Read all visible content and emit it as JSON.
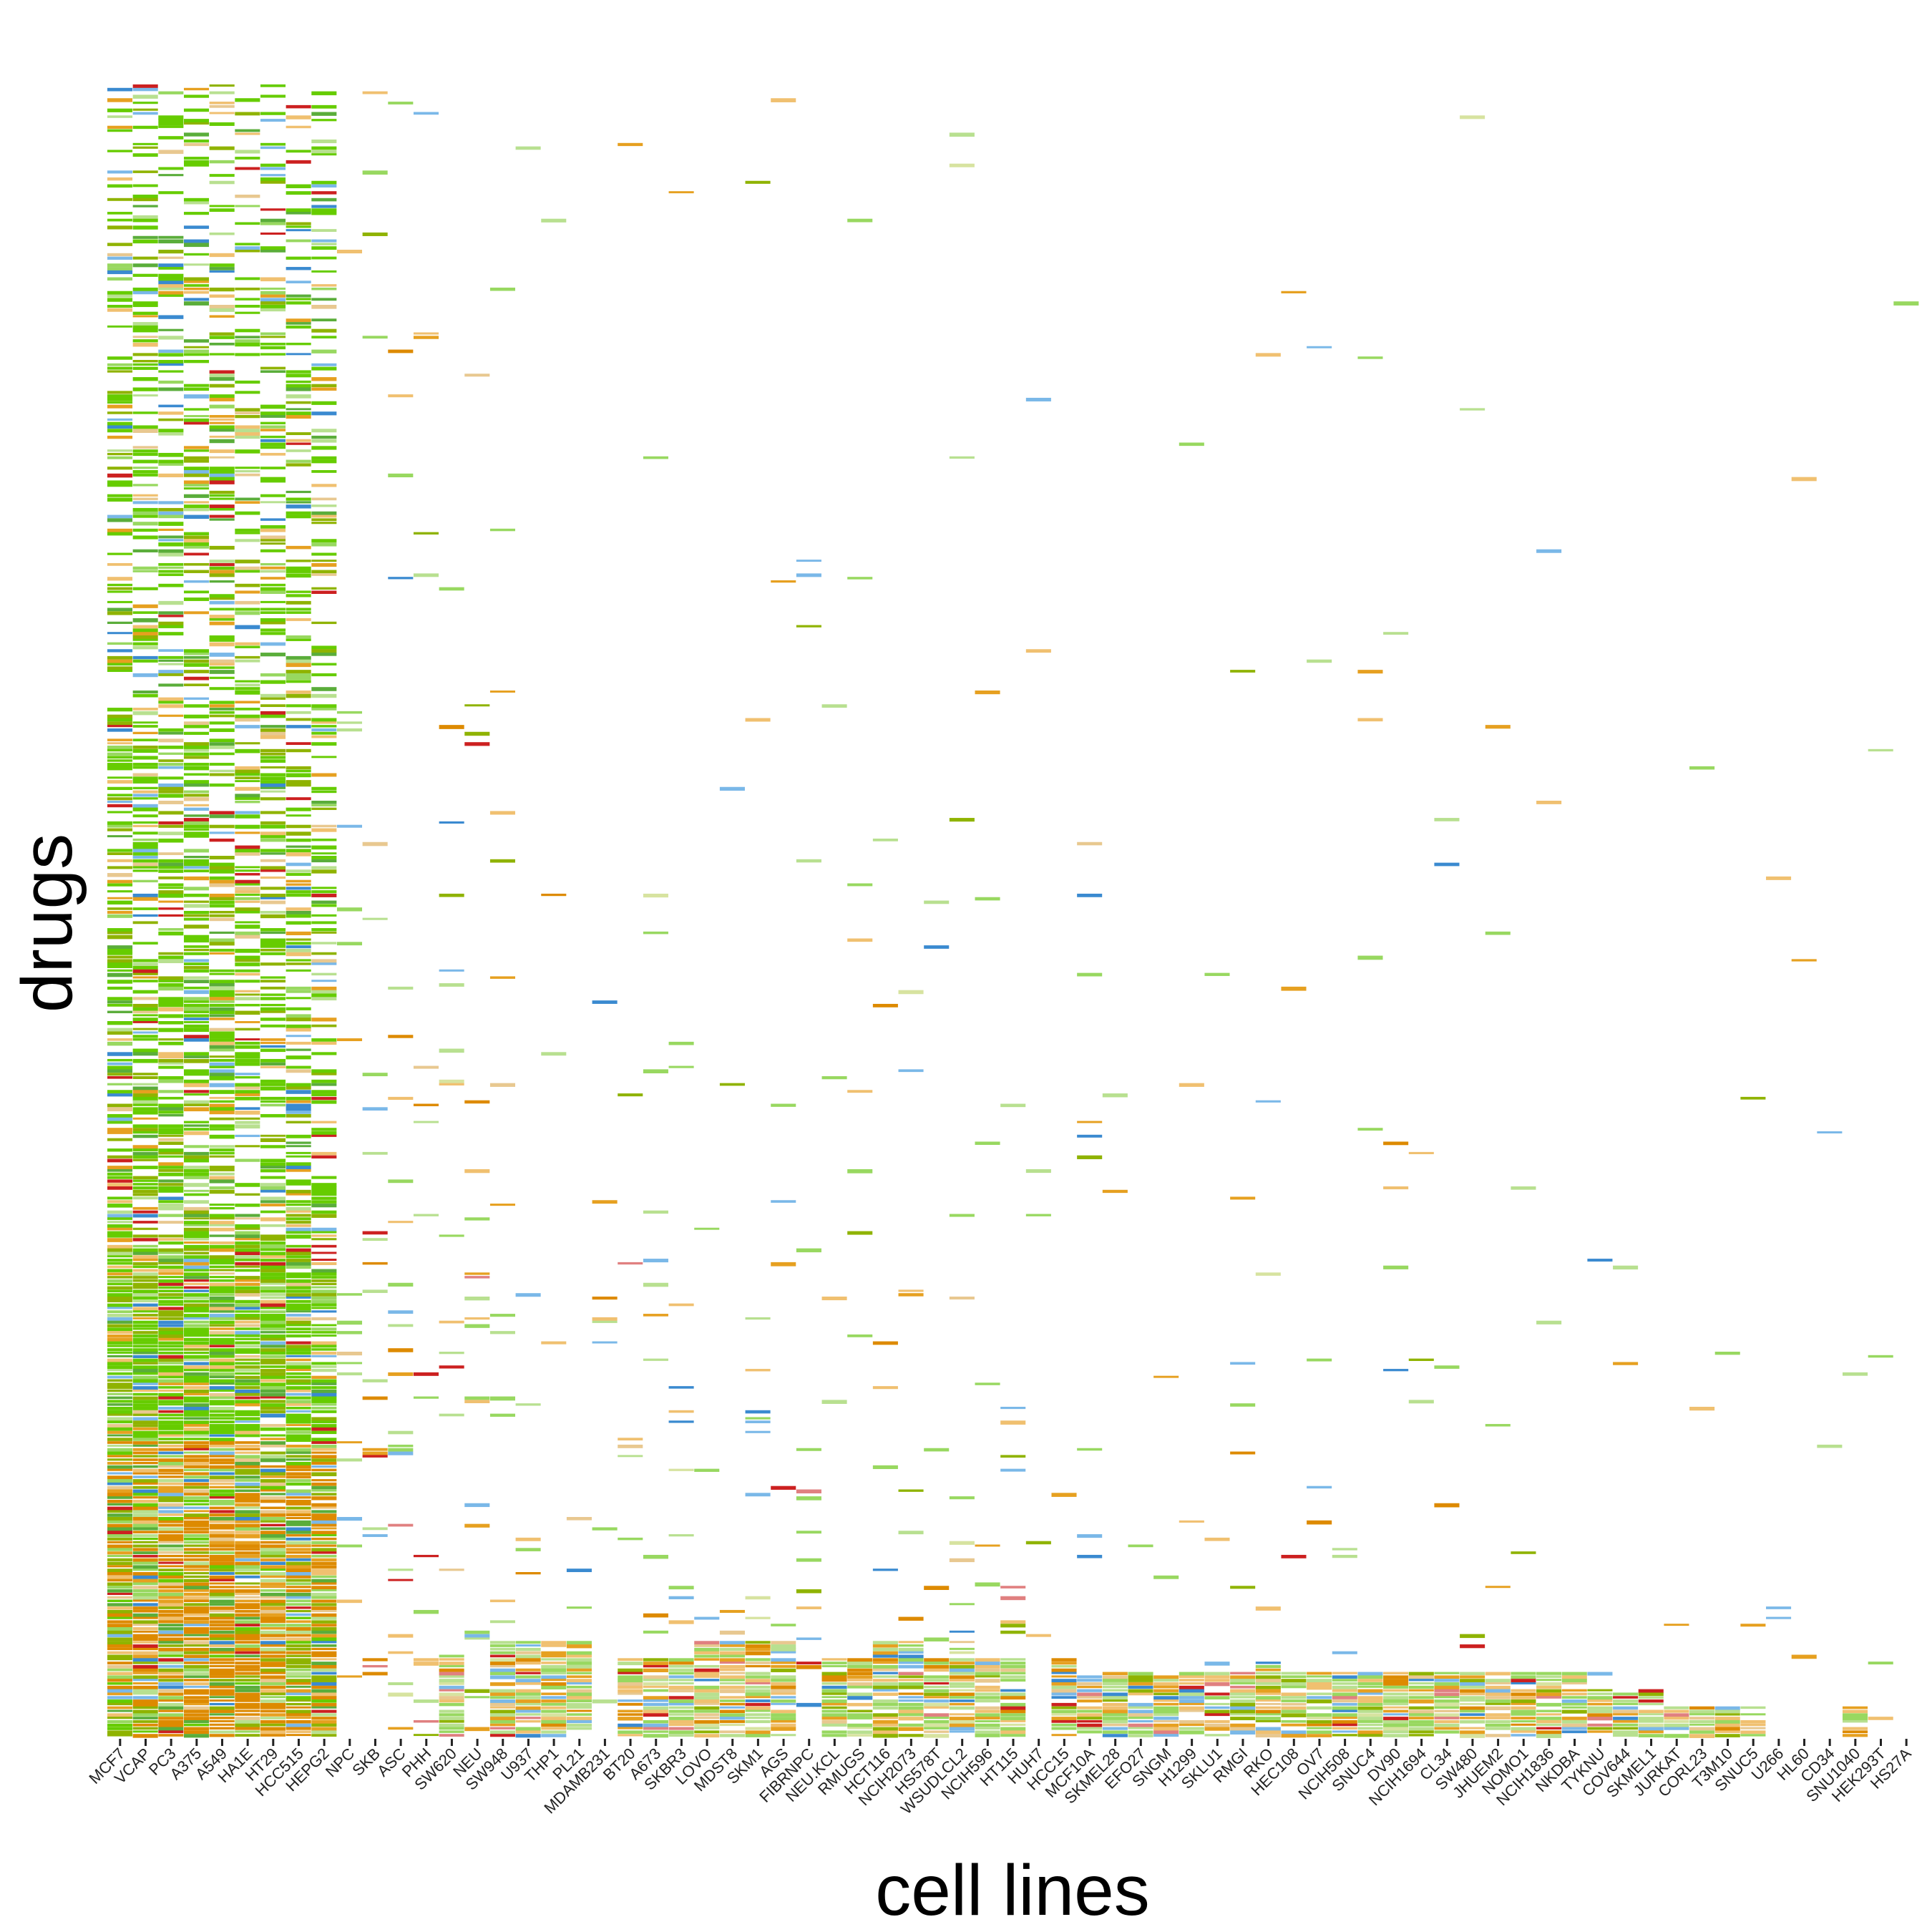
{
  "chart_data": {
    "type": "heatmap",
    "title": "",
    "xlabel": "cell lines",
    "ylabel": "drugs",
    "legend": "none",
    "grid": false,
    "background": "#ffffff",
    "row_count": 480,
    "categories": [
      "MCF7",
      "VCAP",
      "PC3",
      "A375",
      "A549",
      "HA1E",
      "HT29",
      "HCC515",
      "HEPG2",
      "NPC",
      "SKB",
      "ASC",
      "PHH",
      "SW620",
      "NEU",
      "SW948",
      "U937",
      "THP1",
      "PL21",
      "MDAMB231",
      "BT20",
      "A673",
      "SKBR3",
      "LOVO",
      "MDST8",
      "SKM1",
      "AGS",
      "FIBRNPC",
      "NEU.KCL",
      "RMUGS",
      "HCT116",
      "NCIH2073",
      "HS578T",
      "WSUDLCL2",
      "NCIH596",
      "HT115",
      "HUH7",
      "HCC15",
      "MCF10A",
      "SKMEL28",
      "EFO27",
      "SNGM",
      "H1299",
      "SKLU1",
      "RMGI",
      "RKO",
      "HEC108",
      "OV7",
      "NCIH508",
      "SNUC4",
      "DV90",
      "NCIH1694",
      "CL34",
      "SW480",
      "JHUEM2",
      "NOMO1",
      "NCIH1836",
      "NKDBA",
      "TYKNU",
      "COV644",
      "SKMEL1",
      "JURKAT",
      "CORL23",
      "T3M10",
      "SNUC5",
      "U266",
      "HL60",
      "CD34",
      "SNU1040",
      "HEK293T",
      "HS27A"
    ],
    "values": [
      1.0,
      0.95,
      0.93,
      0.9,
      0.88,
      0.82,
      0.8,
      0.85,
      0.78,
      0.35,
      0.3,
      0.32,
      0.3,
      0.22,
      0.25,
      0.2,
      0.12,
      0.12,
      0.12,
      0.14,
      0.14,
      0.14,
      0.16,
      0.12,
      0.12,
      0.12,
      0.12,
      0.12,
      0.12,
      0.08,
      0.1,
      0.1,
      0.1,
      0.12,
      0.1,
      0.1,
      0.08,
      0.08,
      0.12,
      0.06,
      0.06,
      0.06,
      0.05,
      0.06,
      0.05,
      0.05,
      0.05,
      0.05,
      0.05,
      0.05,
      0.05,
      0.05,
      0.05,
      0.05,
      0.05,
      0.05,
      0.05,
      0.04,
      0.05,
      0.04,
      0.04,
      0.04,
      0.04,
      0.03,
      0.03,
      0.03,
      0.03,
      0.02,
      0.03,
      0.02,
      0.02
    ],
    "bottom_dense_fraction": [
      0,
      0,
      0,
      0,
      0,
      0,
      0,
      0,
      0,
      0,
      0,
      0,
      0,
      0.05,
      0,
      0.06,
      0.06,
      0.06,
      0.06,
      0,
      0.05,
      0.05,
      0.05,
      0.06,
      0.06,
      0.06,
      0.06,
      0,
      0.05,
      0.05,
      0.06,
      0.06,
      0.05,
      0.06,
      0.05,
      0.05,
      0,
      0.05,
      0.04,
      0.04,
      0.04,
      0.04,
      0.04,
      0.04,
      0.04,
      0.05,
      0.04,
      0.04,
      0.04,
      0.04,
      0.04,
      0.04,
      0.04,
      0.04,
      0.04,
      0.04,
      0.04,
      0.04,
      0.03,
      0.03,
      0.03,
      0.02,
      0.02,
      0.02,
      0.02,
      0,
      0,
      0,
      0.02,
      0,
      0
    ],
    "palette": [
      "#66cc00",
      "#8fb300",
      "#dd8a00",
      "#5aad3a",
      "#e6a020",
      "#f0c070",
      "#98d860",
      "#b8e090",
      "#e8c890",
      "#d7e3a0",
      "#7ab8e8",
      "#3a8ad0",
      "#cc2020",
      "#b0b040",
      "#e08080",
      "#60c0c0"
    ]
  }
}
